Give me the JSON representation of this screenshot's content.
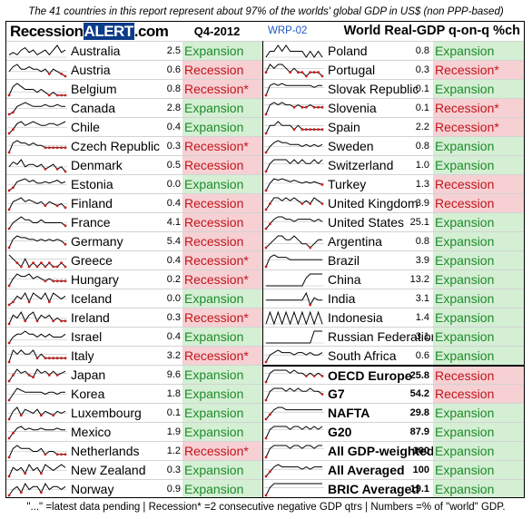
{
  "subtitle": "The 41 countries in this report represent about 97% of the worlds' global GDP in US$ (non PPP-based)",
  "header": {
    "brand_part1": "Recession",
    "brand_part2": "ALERT",
    "brand_part3": ".com",
    "period": "Q4-2012",
    "wrp": "WRP-02",
    "chart_title": "World Real-GDP q-on-q %ch"
  },
  "colors": {
    "expansion_bg": "#d4efd4",
    "expansion_text": "#1f8a2a",
    "recession_bg": "#f6d0d3",
    "recession_text": "#c0151c",
    "spark_line": "#000000",
    "spark_dots": "#d11a1a",
    "brand_bg": "#0b3c8a"
  },
  "left_rows": [
    {
      "name": "Australia",
      "weight": "2.5",
      "status": "Expansion",
      "type": "exp",
      "spark": [
        1,
        2,
        1,
        3,
        4,
        2,
        3,
        1,
        2,
        3,
        1,
        3,
        5,
        2,
        3
      ]
    },
    {
      "name": "Austria",
      "weight": "0.6",
      "status": "Recession",
      "type": "rec",
      "spark": [
        0,
        2,
        3,
        1,
        1,
        2,
        1,
        1,
        0,
        1,
        -1,
        1,
        0,
        -1,
        -2
      ]
    },
    {
      "name": "Belgium",
      "weight": "0.8",
      "status": "Recession*",
      "type": "rec",
      "spark": [
        -1,
        2,
        3,
        2,
        1,
        1,
        1,
        0,
        1,
        0,
        -1,
        0,
        -1,
        -1,
        -1
      ]
    },
    {
      "name": "Canada",
      "weight": "2.8",
      "status": "Expansion",
      "type": "exp",
      "spark": [
        -3,
        -2,
        1,
        2,
        3,
        2,
        1,
        1,
        1,
        2,
        1,
        1,
        2,
        1,
        1
      ]
    },
    {
      "name": "Chile",
      "weight": "0.4",
      "status": "Expansion",
      "type": "exp",
      "spark": [
        -3,
        -1,
        2,
        3,
        1,
        2,
        3,
        2,
        1,
        1,
        2,
        2,
        1,
        2,
        3
      ]
    },
    {
      "name": "Czech Republic",
      "weight": "0.3",
      "status": "Recession*",
      "type": "rec",
      "spark": [
        -3,
        1,
        2,
        1,
        1,
        0,
        1,
        0,
        0,
        -1,
        -1,
        -1,
        -1,
        -1,
        -1
      ]
    },
    {
      "name": "Denmark",
      "weight": "0.5",
      "status": "Recession",
      "type": "rec",
      "spark": [
        0,
        2,
        1,
        3,
        0,
        1,
        1,
        0,
        1,
        -1,
        0,
        1,
        -1,
        0,
        -2
      ]
    },
    {
      "name": "Estonia",
      "weight": "0.0",
      "status": "Expansion",
      "type": "exp",
      "spark": [
        -4,
        -2,
        2,
        3,
        4,
        2,
        3,
        1,
        1,
        2,
        1,
        2,
        3,
        1,
        2
      ]
    },
    {
      "name": "Finland",
      "weight": "0.4",
      "status": "Recession",
      "type": "rec",
      "spark": [
        -3,
        1,
        2,
        3,
        1,
        2,
        1,
        0,
        1,
        -1,
        1,
        0,
        -1,
        0,
        -2
      ]
    },
    {
      "name": "France",
      "weight": "4.1",
      "status": "Recession",
      "type": "rec",
      "spark": [
        -2,
        0,
        1,
        2,
        1,
        1,
        0,
        0,
        1,
        0,
        0,
        0,
        0,
        0,
        -1
      ]
    },
    {
      "name": "Germany",
      "weight": "5.4",
      "status": "Recession",
      "type": "rec",
      "spark": [
        -4,
        1,
        3,
        2,
        2,
        1,
        1,
        0,
        1,
        0,
        1,
        0,
        1,
        0,
        -2
      ]
    },
    {
      "name": "Greece",
      "weight": "0.4",
      "status": "Recession*",
      "type": "rec",
      "spark": [
        1,
        0,
        -1,
        -2,
        0,
        -2,
        -1,
        -2,
        -1,
        -2,
        -1,
        -2,
        -2,
        -1,
        -2
      ]
    },
    {
      "name": "Hungary",
      "weight": "0.2",
      "status": "Recession*",
      "type": "rec",
      "spark": [
        -3,
        0,
        2,
        1,
        1,
        2,
        0,
        1,
        0,
        -1,
        0,
        -1,
        -1,
        -1,
        -1
      ]
    },
    {
      "name": "Iceland",
      "weight": "0.0",
      "status": "Expansion",
      "type": "exp",
      "spark": [
        -2,
        -1,
        1,
        0,
        2,
        -1,
        2,
        1,
        0,
        2,
        -1,
        2,
        1,
        0,
        1
      ]
    },
    {
      "name": "Ireland",
      "weight": "0.3",
      "status": "Recession*",
      "type": "rec",
      "spark": [
        -2,
        1,
        0,
        2,
        -1,
        1,
        2,
        -1,
        1,
        0,
        1,
        -1,
        0,
        -1,
        -1
      ]
    },
    {
      "name": "Israel",
      "weight": "0.4",
      "status": "Expansion",
      "type": "exp",
      "spark": [
        -1,
        1,
        2,
        2,
        3,
        2,
        2,
        1,
        2,
        1,
        2,
        1,
        1,
        1,
        2
      ]
    },
    {
      "name": "Italy",
      "weight": "3.2",
      "status": "Recession*",
      "type": "rec",
      "spark": [
        -2,
        1,
        0,
        1,
        0,
        0,
        1,
        -1,
        0,
        -1,
        -1,
        -1,
        -1,
        -1,
        -1
      ]
    },
    {
      "name": "Japan",
      "weight": "9.6",
      "status": "Expansion",
      "type": "exp",
      "spark": [
        -4,
        -1,
        2,
        0,
        1,
        -1,
        -2,
        2,
        0,
        1,
        -1,
        1,
        -1,
        0,
        1
      ]
    },
    {
      "name": "Korea",
      "weight": "1.8",
      "status": "Expansion",
      "type": "exp",
      "spark": [
        -3,
        0,
        3,
        2,
        1,
        1,
        1,
        1,
        1,
        0,
        1,
        1,
        0,
        1,
        1
      ]
    },
    {
      "name": "Luxembourg",
      "weight": "0.1",
      "status": "Expansion",
      "type": "exp",
      "spark": [
        -3,
        1,
        3,
        -1,
        2,
        1,
        0,
        2,
        -1,
        1,
        0,
        -1,
        1,
        0,
        1
      ]
    },
    {
      "name": "Mexico",
      "weight": "1.9",
      "status": "Expansion",
      "type": "exp",
      "spark": [
        -4,
        -1,
        2,
        3,
        1,
        2,
        1,
        1,
        2,
        1,
        1,
        1,
        2,
        1,
        1
      ]
    },
    {
      "name": "Netherlands",
      "weight": "1.2",
      "status": "Recession*",
      "type": "rec",
      "spark": [
        -2,
        1,
        2,
        1,
        1,
        1,
        0,
        0,
        1,
        -1,
        0,
        0,
        -1,
        -1,
        -1
      ]
    },
    {
      "name": "New Zealand",
      "weight": "0.3",
      "status": "Expansion",
      "type": "exp",
      "spark": [
        -2,
        1,
        0,
        1,
        -1,
        2,
        0,
        1,
        -1,
        2,
        1,
        0,
        1,
        2,
        1
      ]
    },
    {
      "name": "Norway",
      "weight": "0.9",
      "status": "Expansion",
      "type": "exp",
      "spark": [
        -2,
        0,
        1,
        -1,
        2,
        0,
        1,
        1,
        -1,
        2,
        0,
        1,
        1,
        0,
        1
      ]
    }
  ],
  "right_rows": [
    {
      "name": "Poland",
      "weight": "0.8",
      "status": "Expansion",
      "type": "exp",
      "spark": [
        0,
        1,
        1,
        2,
        1,
        2,
        1,
        1,
        1,
        1,
        0,
        1,
        0,
        1,
        0
      ]
    },
    {
      "name": "Portugal",
      "weight": "0.3",
      "status": "Recession*",
      "type": "rec",
      "spark": [
        -1,
        1,
        0,
        1,
        1,
        0,
        -1,
        0,
        -1,
        -1,
        -2,
        -1,
        -1,
        -1,
        -2
      ]
    },
    {
      "name": "Slovak Republic",
      "weight": "0.1",
      "status": "Expansion",
      "type": "exp",
      "spark": [
        -4,
        1,
        2,
        1,
        2,
        1,
        1,
        1,
        1,
        1,
        1,
        1,
        0,
        1,
        1
      ]
    },
    {
      "name": "Slovenia",
      "weight": "0.1",
      "status": "Recession*",
      "type": "rec",
      "spark": [
        -4,
        0,
        1,
        0,
        1,
        0,
        0,
        -1,
        0,
        -1,
        -1,
        0,
        -1,
        -1,
        -1
      ]
    },
    {
      "name": "Spain",
      "weight": "2.2",
      "status": "Recession*",
      "type": "rec",
      "spark": [
        -2,
        0,
        0,
        1,
        0,
        0,
        0,
        -1,
        0,
        -1,
        -1,
        -1,
        -1,
        -1,
        -1
      ]
    },
    {
      "name": "Sweden",
      "weight": "0.8",
      "status": "Expansion",
      "type": "exp",
      "spark": [
        -3,
        0,
        2,
        3,
        2,
        2,
        1,
        1,
        1,
        0,
        1,
        0,
        1,
        0,
        1
      ]
    },
    {
      "name": "Switzerland",
      "weight": "1.0",
      "status": "Expansion",
      "type": "exp",
      "spark": [
        -2,
        0,
        1,
        1,
        1,
        1,
        0,
        1,
        0,
        1,
        0,
        0,
        1,
        0,
        1
      ]
    },
    {
      "name": "Turkey",
      "weight": "1.3",
      "status": "Recession",
      "type": "rec",
      "spark": [
        -5,
        0,
        3,
        2,
        3,
        2,
        1,
        2,
        1,
        0,
        1,
        0,
        1,
        0,
        -1
      ]
    },
    {
      "name": "United Kingdom",
      "weight": "3.9",
      "status": "Recession",
      "type": "rec",
      "spark": [
        -3,
        -1,
        1,
        1,
        0,
        1,
        0,
        1,
        0,
        -1,
        0,
        -1,
        1,
        0,
        -1
      ]
    },
    {
      "name": "United States",
      "weight": "25.1",
      "status": "Expansion",
      "type": "exp",
      "spark": [
        -3,
        -1,
        1,
        2,
        2,
        1,
        1,
        0,
        1,
        1,
        1,
        1,
        0,
        1,
        0
      ]
    },
    {
      "name": "Argentina",
      "weight": "0.8",
      "status": "Expansion",
      "type": "exp",
      "spark": [
        -1,
        0,
        1,
        2,
        2,
        1,
        1,
        2,
        1,
        0,
        0,
        -1,
        0,
        1,
        1
      ]
    },
    {
      "name": "Brazil",
      "weight": "3.9",
      "status": "Expansion",
      "type": "exp",
      "spark": [
        -3,
        1,
        2,
        1,
        1,
        1,
        0,
        0,
        0,
        0,
        0,
        0,
        0,
        0,
        0
      ]
    },
    {
      "name": "China",
      "weight": "13.2",
      "status": "Expansion",
      "type": "exp",
      "spark": [
        0,
        0,
        0,
        0,
        0,
        0,
        0,
        0,
        0,
        0,
        2,
        3,
        3,
        3,
        3
      ]
    },
    {
      "name": "India",
      "weight": "3.1",
      "status": "Expansion",
      "type": "exp",
      "spark": [
        0,
        0,
        0,
        0,
        0,
        0,
        0,
        0,
        0,
        0,
        3,
        -2,
        1,
        0,
        0
      ]
    },
    {
      "name": "Indonesia",
      "weight": "1.4",
      "status": "Expansion",
      "type": "exp",
      "spark": [
        0,
        1,
        0,
        1,
        0,
        1,
        0,
        1,
        0,
        1,
        0,
        1,
        0,
        1,
        0
      ]
    },
    {
      "name": "Russian Federation",
      "weight": "3.1",
      "status": "Expansion",
      "type": "exp",
      "spark": [
        0,
        0,
        0,
        0,
        0,
        0,
        0,
        0,
        0,
        0,
        0,
        0,
        1,
        1,
        1
      ]
    },
    {
      "name": "South Africa",
      "weight": "0.6",
      "status": "Expansion",
      "type": "exp",
      "spark": [
        -3,
        0,
        1,
        2,
        1,
        1,
        1,
        0,
        1,
        1,
        0,
        1,
        0,
        0,
        1
      ]
    }
  ],
  "aggregates": [
    {
      "name": "OECD Europe",
      "weight": "25.8",
      "status": "Recession",
      "type": "rec",
      "spark": [
        -3,
        0,
        1,
        1,
        1,
        1,
        0,
        1,
        0,
        0,
        -1,
        0,
        -1,
        0,
        -1
      ]
    },
    {
      "name": "G7",
      "weight": "54.2",
      "status": "Recession",
      "type": "rec",
      "spark": [
        -3,
        0,
        1,
        1,
        1,
        0,
        1,
        0,
        1,
        0,
        0,
        1,
        0,
        0,
        -1
      ]
    },
    {
      "name": "NAFTA",
      "weight": "29.8",
      "status": "Expansion",
      "type": "exp",
      "spark": [
        -3,
        -1,
        1,
        2,
        2,
        1,
        1,
        1,
        1,
        1,
        1,
        1,
        1,
        1,
        1
      ]
    },
    {
      "name": "G20",
      "weight": "87.9",
      "status": "Expansion",
      "type": "exp",
      "spark": [
        -3,
        0,
        1,
        1,
        1,
        1,
        0,
        1,
        1,
        0,
        1,
        0,
        1,
        0,
        1
      ]
    },
    {
      "name": "All GDP-weighted",
      "weight": "100",
      "status": "Expansion",
      "type": "exp",
      "spark": [
        -3,
        0,
        1,
        1,
        1,
        1,
        0,
        1,
        1,
        0,
        1,
        1,
        0,
        1,
        1
      ]
    },
    {
      "name": "All Averaged",
      "weight": "100",
      "status": "Expansion",
      "type": "exp",
      "spark": [
        -3,
        -1,
        1,
        2,
        1,
        1,
        1,
        1,
        1,
        0,
        1,
        0,
        1,
        1,
        1
      ]
    },
    {
      "name": "BRIC Averaged",
      "weight": "19.1",
      "status": "Expansion",
      "type": "exp",
      "spark": [
        -2,
        0,
        1,
        1,
        1,
        1,
        1,
        1,
        1,
        1,
        1,
        1,
        1,
        1,
        1
      ]
    }
  ],
  "footnote": "\"...\" =latest data pending  |  Recession* =2 consecutive negative GDP qtrs  |  Numbers =% of \"world\" GDP."
}
